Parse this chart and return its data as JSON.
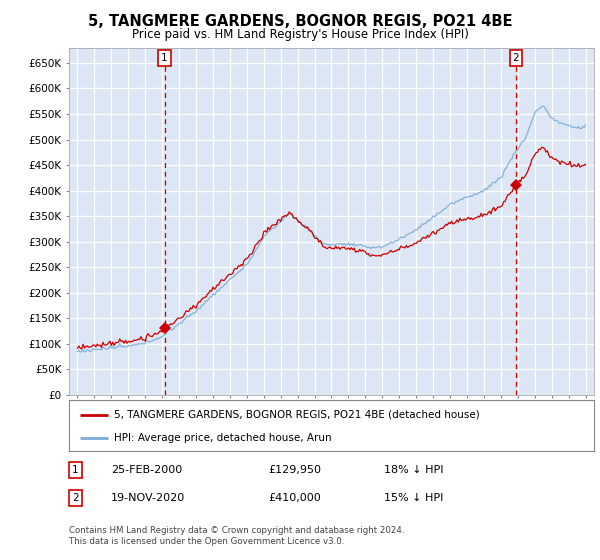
{
  "title": "5, TANGMERE GARDENS, BOGNOR REGIS, PO21 4BE",
  "subtitle": "Price paid vs. HM Land Registry's House Price Index (HPI)",
  "legend_label_red": "5, TANGMERE GARDENS, BOGNOR REGIS, PO21 4BE (detached house)",
  "legend_label_blue": "HPI: Average price, detached house, Arun",
  "annotation1": {
    "label": "1",
    "date": "25-FEB-2000",
    "price": "£129,950",
    "pct": "18% ↓ HPI",
    "x_year": 2000.14
  },
  "annotation2": {
    "label": "2",
    "date": "19-NOV-2020",
    "price": "£410,000",
    "pct": "15% ↓ HPI",
    "x_year": 2020.89
  },
  "footer": "Contains HM Land Registry data © Crown copyright and database right 2024.\nThis data is licensed under the Open Government Licence v3.0.",
  "ylim": [
    0,
    680000
  ],
  "ytick_values": [
    0,
    50000,
    100000,
    150000,
    200000,
    250000,
    300000,
    350000,
    400000,
    450000,
    500000,
    550000,
    600000,
    650000
  ],
  "xlim_start": 1994.5,
  "xlim_end": 2025.5,
  "plot_bg": "#dce6f5",
  "grid_color": "#ffffff",
  "red_color": "#cc0000",
  "blue_color": "#7aadd4",
  "sale1_x": 2000.14,
  "sale1_y": 129950,
  "sale2_x": 2020.89,
  "sale2_y": 410000
}
